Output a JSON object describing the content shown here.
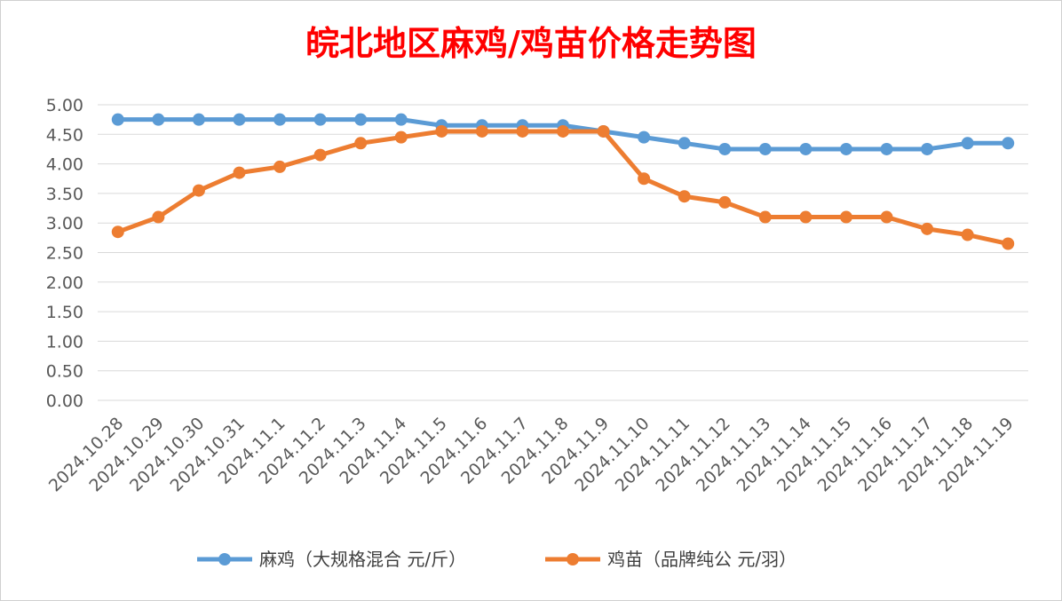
{
  "chart_data": {
    "type": "line",
    "title": "皖北地区麻鸡/鸡苗价格走势图",
    "categories": [
      "2024.10.28",
      "2024.10.29",
      "2024.10.30",
      "2024.10.31",
      "2024.11.1",
      "2024.11.2",
      "2024.11.3",
      "2024.11.4",
      "2024.11.5",
      "2024.11.6",
      "2024.11.7",
      "2024.11.8",
      "2024.11.9",
      "2024.11.10",
      "2024.11.11",
      "2024.11.12",
      "2024.11.13",
      "2024.11.14",
      "2024.11.15",
      "2024.11.16",
      "2024.11.17",
      "2024.11.18",
      "2024.11.19"
    ],
    "series": [
      {
        "name": "麻鸡（大规格混合 元/斤）",
        "color": "#5b9bd5",
        "values": [
          4.75,
          4.75,
          4.75,
          4.75,
          4.75,
          4.75,
          4.75,
          4.75,
          4.65,
          4.65,
          4.65,
          4.65,
          4.55,
          4.45,
          4.35,
          4.25,
          4.25,
          4.25,
          4.25,
          4.25,
          4.25,
          4.35,
          4.35
        ]
      },
      {
        "name": "鸡苗（品牌纯公 元/羽）",
        "color": "#ed7d31",
        "values": [
          2.85,
          3.1,
          3.55,
          3.85,
          3.95,
          4.15,
          4.35,
          4.45,
          4.55,
          4.55,
          4.55,
          4.55,
          4.55,
          3.75,
          3.45,
          3.35,
          3.1,
          3.1,
          3.1,
          3.1,
          2.9,
          2.8,
          2.65
        ]
      }
    ],
    "ylim": [
      0,
      5
    ],
    "ytick_labels": [
      "0.00",
      "0.50",
      "1.00",
      "1.50",
      "2.00",
      "2.50",
      "3.00",
      "3.50",
      "4.00",
      "4.50",
      "5.00"
    ],
    "grid": true,
    "legend_position": "bottom"
  }
}
